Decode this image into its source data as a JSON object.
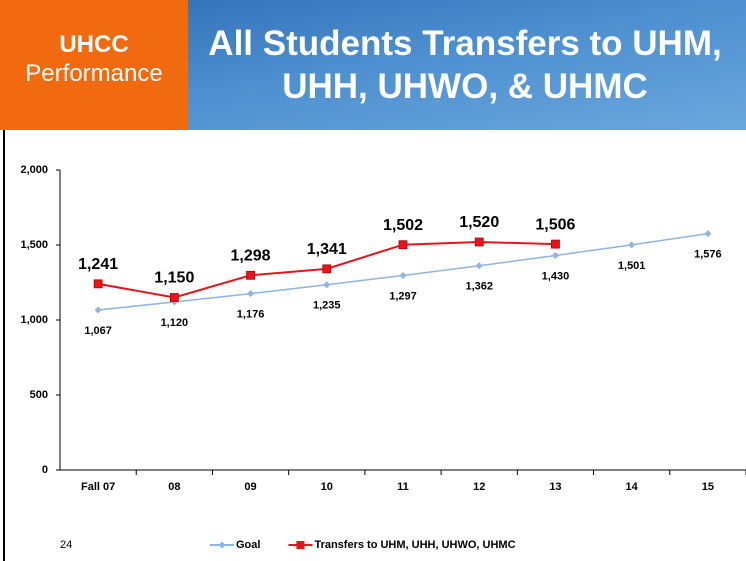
{
  "slide": {
    "org": "UHCC",
    "section": "Performance",
    "page_number": "24"
  },
  "chart_data": {
    "type": "line",
    "title": "All Students Transfers to UHM, UHH, UHWO, & UHMC",
    "categories": [
      "Fall 07",
      "08",
      "09",
      "10",
      "11",
      "12",
      "13",
      "14",
      "15"
    ],
    "series": [
      {
        "name": "Goal",
        "color": "#8db4e2",
        "marker": "diamond",
        "values": [
          1067,
          1120,
          1176,
          1235,
          1297,
          1362,
          1430,
          1501,
          1576
        ],
        "value_labels": [
          "1,067",
          "1,120",
          "1,176",
          "1,235",
          "1,297",
          "1,362",
          "1,430",
          "1,501",
          "1,576"
        ]
      },
      {
        "name": "Transfers to UHM, UHH, UHWO, UHMC",
        "color": "#e8141b",
        "marker": "square",
        "values": [
          1241,
          1150,
          1298,
          1341,
          1502,
          1520,
          1506,
          null,
          null
        ],
        "value_labels": [
          "1,241",
          "1,150",
          "1,298",
          "1,341",
          "1,502",
          "1,520",
          "1,506",
          null,
          null
        ]
      }
    ],
    "ylim": [
      0,
      2000
    ],
    "yticks": [
      0,
      500,
      {
        "value": 1000,
        "label": "1,000"
      },
      {
        "value": 1500,
        "label": "1,500"
      },
      {
        "value": 2000,
        "label": "2,000"
      }
    ],
    "grid": false,
    "legend": "bottom"
  }
}
